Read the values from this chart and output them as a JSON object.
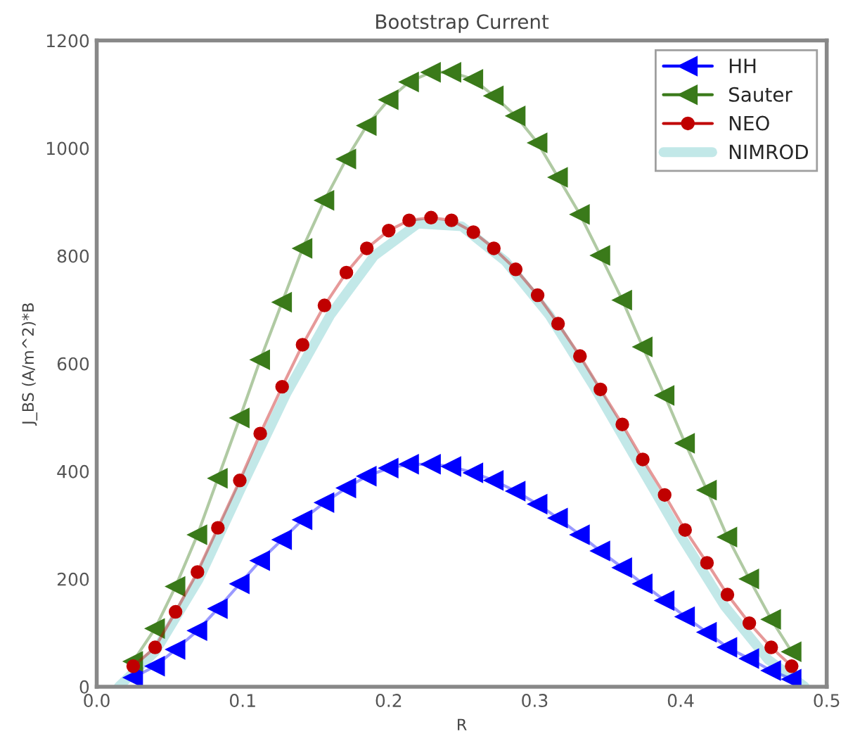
{
  "chart_data": {
    "type": "line",
    "title": "Bootstrap Current",
    "xlabel": "R",
    "ylabel": "J_BS (A/m^2)*B",
    "x": [
      0.025,
      0.04,
      0.054,
      0.069,
      0.083,
      0.098,
      0.112,
      0.127,
      0.141,
      0.156,
      0.171,
      0.185,
      0.2,
      0.214,
      0.229,
      0.243,
      0.258,
      0.272,
      0.287,
      0.302,
      0.316,
      0.331,
      0.345,
      0.36,
      0.374,
      0.389,
      0.403,
      0.418,
      0.432,
      0.447,
      0.462,
      0.476
    ],
    "series": [
      {
        "name": "HH",
        "color": "#0000ff",
        "marker": "triangle",
        "values": [
          17,
          38,
          69,
          104,
          145,
          191,
          234,
          273,
          310,
          342,
          369,
          391,
          406,
          413,
          413,
          409,
          397,
          383,
          363,
          339,
          313,
          282,
          252,
          221,
          191,
          160,
          130,
          101,
          73,
          52,
          30,
          14
        ]
      },
      {
        "name": "Sauter",
        "color": "#3a7a1a",
        "marker": "triangle",
        "values": [
          47,
          108,
          186,
          282,
          387,
          499,
          607,
          714,
          814,
          903,
          980,
          1042,
          1090,
          1123,
          1141,
          1141,
          1128,
          1097,
          1060,
          1010,
          946,
          877,
          801,
          718,
          631,
          541,
          452,
          365,
          278,
          200,
          125,
          65
        ]
      },
      {
        "name": "NEO",
        "color": "#c00000",
        "marker": "circle",
        "values": [
          38,
          73,
          139,
          213,
          295,
          383,
          470,
          557,
          635,
          708,
          769,
          814,
          847,
          866,
          871,
          866,
          844,
          814,
          775,
          727,
          674,
          614,
          552,
          487,
          422,
          356,
          291,
          230,
          171,
          118,
          73,
          38
        ]
      },
      {
        "name": "NIMROD",
        "color": "#a8dede",
        "marker": "none",
        "x": [
          0.015,
          0.04,
          0.07,
          0.1,
          0.13,
          0.16,
          0.19,
          0.22,
          0.25,
          0.28,
          0.31,
          0.34,
          0.37,
          0.4,
          0.43,
          0.46,
          0.485
        ],
        "values": [
          0,
          65,
          200,
          375,
          545,
          690,
          800,
          860,
          855,
          790,
          690,
          560,
          420,
          280,
          150,
          50,
          0
        ]
      }
    ],
    "xlim": [
      0.0,
      0.5
    ],
    "ylim": [
      0,
      1200
    ],
    "xticks": [
      {
        "value": 0.0,
        "label": "0.0"
      },
      0.1,
      0.2,
      0.3,
      0.4,
      0.5
    ],
    "yticks": [
      0,
      200,
      400,
      600,
      800,
      1000,
      1200
    ],
    "legend": "top right",
    "grid": false
  }
}
